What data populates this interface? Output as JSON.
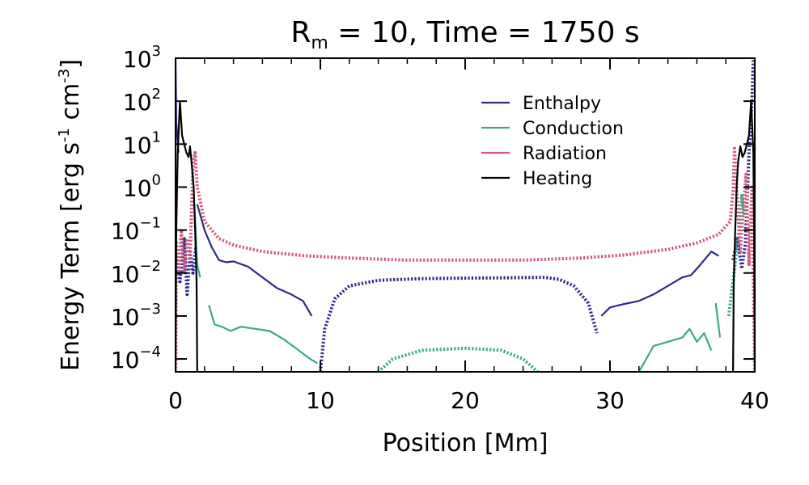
{
  "chart_data": {
    "type": "line",
    "title": {
      "prefix": "R",
      "subscript": "m",
      "rest": " = 10, Time = 1750 s"
    },
    "xlabel": "Position [Mm]",
    "ylabel": {
      "main": "Energy Term [erg s",
      "sup1": "-1",
      "mid": " cm",
      "sup2": "-3",
      "end": "]"
    },
    "xlim": [
      0,
      40
    ],
    "ylim_log10": [
      -4.3,
      3
    ],
    "x_ticks": [
      0,
      10,
      20,
      30,
      40
    ],
    "x_tick_labels": [
      "0",
      "10",
      "20",
      "30",
      "40"
    ],
    "y_ticks": [
      {
        "value": 3,
        "base": "10",
        "exp": "3"
      },
      {
        "value": 2,
        "base": "10",
        "exp": "2"
      },
      {
        "value": 1,
        "base": "10",
        "exp": "1"
      },
      {
        "value": 0,
        "base": "10",
        "exp": "0"
      },
      {
        "value": -1,
        "base": "10",
        "exp": "−1"
      },
      {
        "value": -2,
        "base": "10",
        "exp": "−2"
      },
      {
        "value": -3,
        "base": "10",
        "exp": "−3"
      },
      {
        "value": -4,
        "base": "10",
        "exp": "−4"
      }
    ],
    "legend": {
      "position": "top-right"
    },
    "series": [
      {
        "name": "Enthalpy",
        "color": "#2b2b8a",
        "segments": [
          {
            "style": "solid",
            "points": [
              [
                1.5,
                -0.4
              ],
              [
                2.0,
                -1.0
              ],
              [
                2.5,
                -1.4
              ],
              [
                3.0,
                -1.7
              ],
              [
                3.5,
                -1.75
              ],
              [
                4,
                -1.73
              ],
              [
                5,
                -1.85
              ],
              [
                6,
                -2.1
              ],
              [
                7,
                -2.35
              ],
              [
                8,
                -2.5
              ],
              [
                8.8,
                -2.65
              ],
              [
                9.4,
                -3.0
              ]
            ]
          },
          {
            "style": "dotted",
            "points": [
              [
                10.0,
                -4.3
              ],
              [
                10.3,
                -3.3
              ],
              [
                11,
                -2.6
              ],
              [
                12,
                -2.3
              ],
              [
                14,
                -2.17
              ],
              [
                17,
                -2.13
              ],
              [
                20,
                -2.12
              ],
              [
                23,
                -2.11
              ],
              [
                25.5,
                -2.1
              ],
              [
                26.5,
                -2.15
              ],
              [
                27.5,
                -2.3
              ],
              [
                28.5,
                -2.7
              ],
              [
                29.1,
                -3.4
              ]
            ]
          },
          {
            "style": "solid",
            "points": [
              [
                29.4,
                -3.0
              ],
              [
                30,
                -2.8
              ],
              [
                31,
                -2.72
              ],
              [
                32,
                -2.65
              ],
              [
                33,
                -2.5
              ],
              [
                34,
                -2.3
              ],
              [
                35,
                -2.1
              ],
              [
                35.6,
                -2.05
              ],
              [
                36,
                -1.9
              ],
              [
                37,
                -1.5
              ],
              [
                37.5,
                -1.6
              ]
            ]
          },
          {
            "style": "dotted",
            "points": [
              [
                0.05,
                -1.6
              ],
              [
                0.3,
                -2.2
              ],
              [
                0.6,
                -1.2
              ],
              [
                0.8,
                -2.5
              ],
              [
                1.0,
                -1.5
              ],
              [
                1.2,
                -2.0
              ],
              [
                1.4,
                -1.4
              ]
            ]
          },
          {
            "style": "dotted",
            "points": [
              [
                38.5,
                -1.7
              ],
              [
                38.8,
                -1.2
              ],
              [
                39.1,
                -1.9
              ],
              [
                39.35,
                -1.3
              ],
              [
                39.6,
                0.8
              ],
              [
                39.8,
                2.0
              ],
              [
                39.9,
                3.0
              ]
            ]
          },
          {
            "style": "solid",
            "points": [
              [
                0.0,
                3.0
              ],
              [
                0.05,
                1.5
              ],
              [
                0.2,
                0.8
              ]
            ]
          }
        ]
      },
      {
        "name": "Conduction",
        "color": "#3aa88a",
        "segments": [
          {
            "style": "solid",
            "points": [
              [
                1.3,
                -0.4
              ],
              [
                1.5,
                -1.8
              ],
              [
                1.7,
                -2.1
              ]
            ]
          },
          {
            "style": "solid",
            "points": [
              [
                2.3,
                -2.75
              ],
              [
                2.7,
                -3.2
              ],
              [
                3.2,
                -3.25
              ],
              [
                3.8,
                -3.35
              ],
              [
                4.5,
                -3.25
              ],
              [
                5.5,
                -3.3
              ],
              [
                6.5,
                -3.35
              ],
              [
                7.5,
                -3.55
              ],
              [
                8.5,
                -3.8
              ],
              [
                9.3,
                -4.0
              ],
              [
                9.8,
                -4.1
              ]
            ]
          },
          {
            "style": "dotted",
            "points": [
              [
                14.0,
                -4.3
              ],
              [
                15,
                -4.0
              ],
              [
                17,
                -3.8
              ],
              [
                20,
                -3.75
              ],
              [
                22.5,
                -3.8
              ],
              [
                24,
                -4.0
              ],
              [
                25,
                -4.3
              ]
            ]
          },
          {
            "style": "solid",
            "points": [
              [
                32,
                -4.3
              ],
              [
                32.5,
                -4.0
              ],
              [
                33,
                -3.7
              ],
              [
                34,
                -3.6
              ],
              [
                35,
                -3.5
              ],
              [
                35.5,
                -3.3
              ],
              [
                36,
                -3.6
              ],
              [
                36.5,
                -3.4
              ],
              [
                37,
                -3.8
              ]
            ]
          },
          {
            "style": "solid",
            "points": [
              [
                37.3,
                -2.7
              ],
              [
                37.6,
                -3.5
              ]
            ]
          },
          {
            "style": "dotted",
            "points": [
              [
                38.2,
                -3.0
              ],
              [
                38.6,
                -1.9
              ],
              [
                38.9,
                -1.0
              ],
              [
                39.1,
                -0.2
              ],
              [
                39.3,
                -0.7
              ]
            ]
          }
        ]
      },
      {
        "name": "Radiation",
        "color": "#d0587a",
        "segments": [
          {
            "style": "dotted",
            "points": [
              [
                0.0,
                -4.3
              ],
              [
                0.05,
                -1.3
              ],
              [
                0.2,
                -2.0
              ],
              [
                0.4,
                -1.0
              ],
              [
                0.6,
                -2.0
              ],
              [
                0.8,
                -1.2
              ],
              [
                1.0,
                -1.7
              ],
              [
                1.2,
                0.5
              ],
              [
                1.35,
                0.8
              ],
              [
                1.5,
                0.0
              ],
              [
                2,
                -0.8
              ],
              [
                3,
                -1.2
              ],
              [
                4,
                -1.35
              ],
              [
                6,
                -1.5
              ],
              [
                9,
                -1.6
              ],
              [
                12,
                -1.65
              ],
              [
                16,
                -1.7
              ],
              [
                20,
                -1.7
              ],
              [
                24,
                -1.7
              ],
              [
                28,
                -1.65
              ],
              [
                31,
                -1.58
              ],
              [
                34,
                -1.45
              ],
              [
                36,
                -1.3
              ],
              [
                37.5,
                -1.1
              ],
              [
                38.3,
                -0.8
              ],
              [
                38.5,
                -0.1
              ],
              [
                38.6,
                0.9
              ],
              [
                38.8,
                -0.4
              ],
              [
                39.0,
                -1.5
              ],
              [
                39.2,
                -0.5
              ],
              [
                39.4,
                0.3
              ],
              [
                39.6,
                -1.8
              ],
              [
                39.8,
                0.0
              ],
              [
                40.0,
                -4.3
              ]
            ]
          }
        ]
      },
      {
        "name": "Heating",
        "color": "#000000",
        "segments": [
          {
            "style": "solid",
            "points": [
              [
                0.0,
                -4.3
              ],
              [
                0.05,
                -1.0
              ],
              [
                0.15,
                0.8
              ],
              [
                0.3,
                2.0
              ],
              [
                0.45,
                1.2
              ],
              [
                0.6,
                1.0
              ],
              [
                0.75,
                0.8
              ],
              [
                0.9,
                0.7
              ],
              [
                1.0,
                0.95
              ],
              [
                1.1,
                0.6
              ],
              [
                1.25,
                0.0
              ],
              [
                1.35,
                -1.0
              ],
              [
                1.45,
                -2.2
              ],
              [
                1.5,
                -4.3
              ]
            ]
          },
          {
            "style": "solid",
            "points": [
              [
                38.5,
                -4.3
              ],
              [
                38.55,
                -2.2
              ],
              [
                38.65,
                -1.0
              ],
              [
                38.75,
                0.0
              ],
              [
                38.85,
                0.6
              ],
              [
                39.0,
                0.95
              ],
              [
                39.15,
                0.7
              ],
              [
                39.3,
                0.8
              ],
              [
                39.45,
                1.0
              ],
              [
                39.6,
                1.2
              ],
              [
                39.75,
                2.0
              ],
              [
                39.9,
                0.8
              ],
              [
                39.95,
                -1.0
              ],
              [
                40.0,
                -4.3
              ]
            ]
          }
        ]
      }
    ]
  }
}
